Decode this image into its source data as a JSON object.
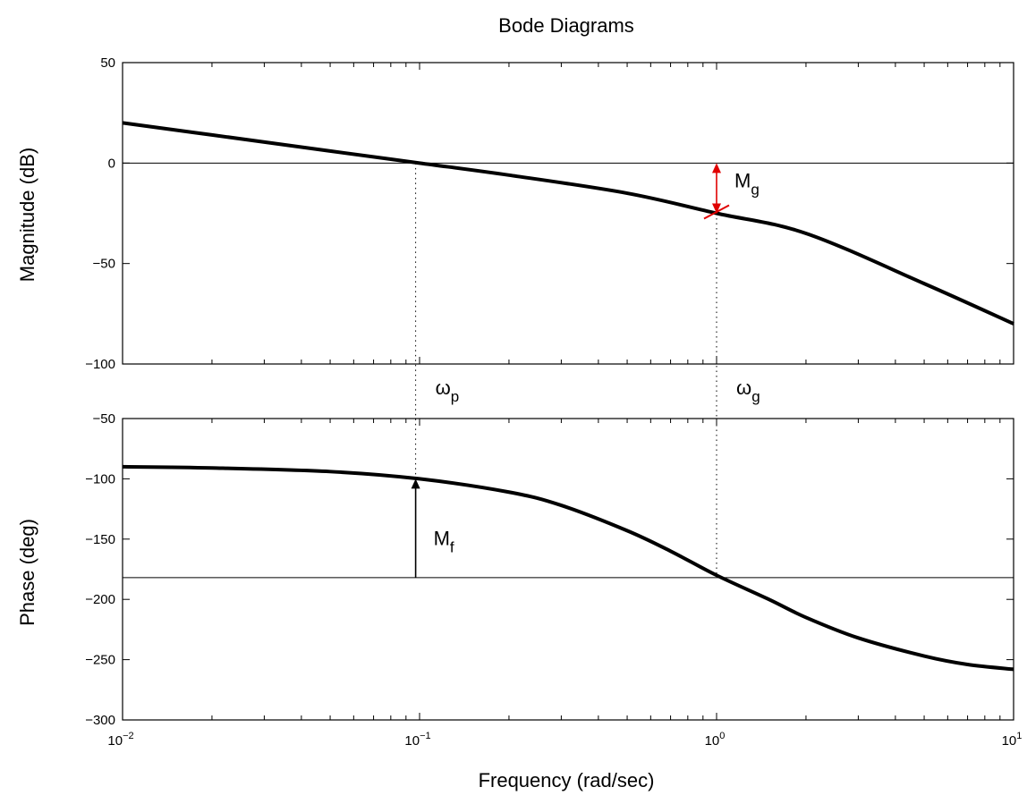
{
  "chart_data": {
    "type": "line",
    "title": "Bode Diagrams",
    "xlabel": "Frequency (rad/sec)",
    "x_scale": "log",
    "x_ticks": [
      {
        "value": 0.01,
        "base": "10",
        "exp": "−2"
      },
      {
        "value": 0.1,
        "base": "10",
        "exp": "−1"
      },
      {
        "value": 1,
        "base": "10",
        "exp": "0"
      },
      {
        "value": 10,
        "base": "10",
        "exp": "1"
      }
    ],
    "panels": [
      {
        "name": "magnitude",
        "ylabel": "Magnitude (dB)",
        "ylim": [
          -100,
          50
        ],
        "yticks": [
          50,
          0,
          -50,
          -100
        ],
        "ytick_labels": [
          "50",
          "0",
          "−50",
          "−100"
        ],
        "reference_line": 0,
        "series": [
          {
            "x": [
              0.01,
              0.02,
              0.05,
              0.1,
              0.2,
              0.5,
              1,
              2,
              5,
              10
            ],
            "y": [
              20,
              14,
              6,
              0,
              -6,
              -15,
              -25,
              -35,
              -60,
              -80
            ]
          }
        ],
        "annotations": [
          {
            "text": "M",
            "subscript": "g",
            "x": 1,
            "from": -25,
            "to": 0,
            "color": "#e00000"
          }
        ]
      },
      {
        "name": "phase",
        "ylabel": "Phase (deg)",
        "ylim": [
          -300,
          -50
        ],
        "yticks": [
          -50,
          -100,
          -150,
          -200,
          -250,
          -300
        ],
        "ytick_labels": [
          "−50",
          "−100",
          "−150",
          "−200",
          "−250",
          "−300"
        ],
        "reference_line": -182,
        "series": [
          {
            "x": [
              0.01,
              0.02,
              0.05,
              0.1,
              0.2,
              0.3,
              0.5,
              0.7,
              1,
              1.5,
              2,
              3,
              5,
              7,
              10
            ],
            "y": [
              -90,
              -91,
              -94,
              -100,
              -111,
              -122,
              -143,
              -160,
              -180,
              -200,
              -215,
              -232,
              -247,
              -254,
              -258
            ]
          }
        ],
        "annotations": [
          {
            "text": "M",
            "subscript": "f",
            "x": 0.097,
            "from": -182,
            "to": -100,
            "color": "#000000"
          }
        ]
      }
    ],
    "markers": [
      {
        "symbol": "ω",
        "subscript": "p",
        "x": 0.097
      },
      {
        "symbol": "ω",
        "subscript": "g",
        "x": 1
      }
    ],
    "line_color": "#000000",
    "highlight_color": "#e00000",
    "grid": false
  }
}
